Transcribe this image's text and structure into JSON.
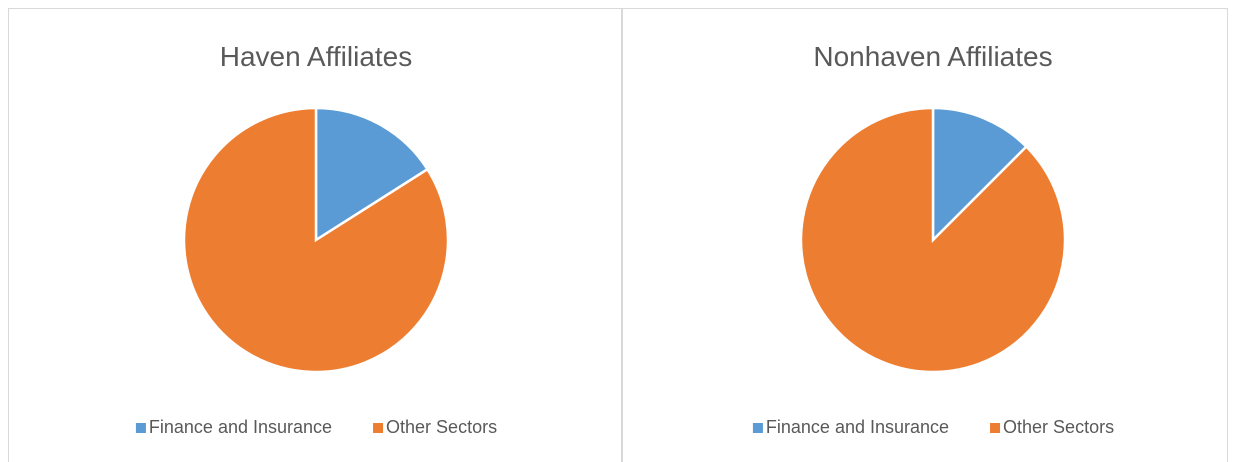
{
  "chart_data": [
    {
      "type": "pie",
      "title": "Haven Affiliates",
      "categories": [
        "Finance and Insurance",
        "Other Sectors"
      ],
      "values": [
        16,
        84
      ],
      "colors": [
        "#5b9bd5",
        "#ed7d31"
      ],
      "legend": "bottom"
    },
    {
      "type": "pie",
      "title": "Nonhaven Affiliates",
      "categories": [
        "Finance and Insurance",
        "Other Sectors"
      ],
      "values": [
        12.5,
        87.5
      ],
      "colors": [
        "#5b9bd5",
        "#ed7d31"
      ],
      "legend": "bottom"
    }
  ]
}
